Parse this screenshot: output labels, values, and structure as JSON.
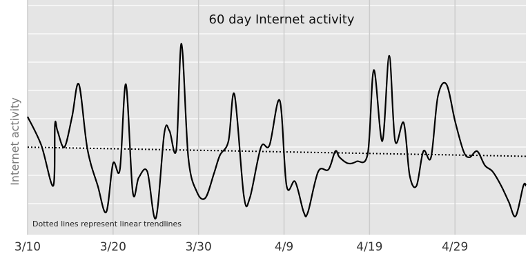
{
  "chart_data": {
    "type": "line",
    "title": "60 day Internet activity",
    "xlabel": "",
    "ylabel": "Internet activity",
    "annotation": "Dotted lines represent linear trendlines",
    "x_tick_labels": [
      "3/10",
      "3/20",
      "3/30",
      "4/9",
      "4/19",
      "4/29"
    ],
    "x_range": [
      0,
      58.3
    ],
    "y_range": [
      0,
      10
    ],
    "grid": true,
    "legend": "none",
    "colors": {
      "background": "#e5e5e5",
      "grid": "#ffffff",
      "vgrid": "#cccccc",
      "line": "#000000"
    },
    "series": [
      {
        "kind": "solid",
        "x": [
          0,
          1.6,
          3.0,
          3.2,
          3.5,
          4.3,
          5.2,
          6.0,
          7.0,
          8.2,
          9.2,
          10.0,
          10.8,
          11.5,
          12.3,
          13.0,
          14.0,
          15.0,
          16.0,
          16.6,
          17.4,
          18.0,
          18.8,
          19.8,
          20.8,
          21.8,
          22.5,
          23.5,
          24.2,
          25.3,
          26.0,
          27.3,
          28.3,
          29.5,
          30.3,
          31.3,
          32.3,
          32.8,
          34.0,
          35.2,
          36.0,
          36.5,
          37.5,
          38.5,
          39.8,
          40.5,
          41.5,
          42.3,
          43.0,
          44.0,
          44.7,
          45.5,
          46.3,
          47.2,
          48.0,
          49.0,
          50.0,
          51.0,
          51.7,
          52.6,
          53.5,
          54.4,
          55.4,
          56.3,
          57.1,
          58.0,
          58.3
        ],
        "y": [
          5.2,
          3.8,
          1.8,
          4.8,
          4.5,
          3.7,
          5.2,
          6.8,
          3.6,
          1.8,
          0.5,
          2.9,
          2.6,
          6.8,
          1.5,
          2.2,
          2.5,
          0.2,
          4.4,
          4.5,
          3.6,
          8.8,
          3.2,
          1.5,
          1.2,
          2.4,
          3.3,
          4.0,
          6.3,
          1.3,
          1.2,
          3.7,
          3.8,
          6.0,
          1.8,
          2.0,
          0.5,
          0.5,
          2.5,
          2.6,
          3.5,
          3.2,
          2.9,
          3.0,
          3.4,
          7.5,
          4.0,
          8.2,
          4.0,
          4.9,
          2.3,
          1.8,
          3.5,
          3.2,
          6.2,
          6.8,
          5.0,
          3.5,
          3.2,
          3.5,
          2.8,
          2.5,
          1.8,
          1.0,
          0.3,
          1.8,
          1.8
        ]
      },
      {
        "kind": "trendline",
        "x": [
          0,
          58.3
        ],
        "y": [
          3.7,
          3.25
        ]
      }
    ]
  }
}
